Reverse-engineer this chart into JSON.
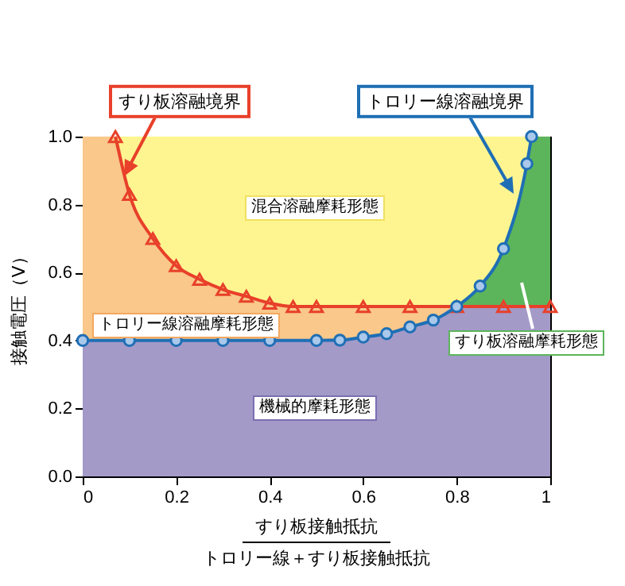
{
  "chart_data": {
    "type": "line",
    "xlabel": "すり板接触抵抗",
    "ylabel": "接触電圧（V）",
    "xlim": [
      0,
      1
    ],
    "xticks": [
      0,
      0.2,
      0.4,
      0.6,
      0.8,
      1
    ],
    "ylim": [
      0,
      1
    ],
    "yticks": [
      {
        "value": 0,
        "label": "0.0"
      },
      {
        "value": 0.2,
        "label": "0.2"
      },
      {
        "value": 0.4,
        "label": "0.4"
      },
      {
        "value": 0.6,
        "label": "0.6"
      },
      {
        "value": 0.8,
        "label": "0.8"
      },
      {
        "value": 1,
        "label": "1.0"
      }
    ],
    "grid": false,
    "series": [
      {
        "type": "area",
        "color": "#fef590",
        "x": [
          0,
          1
        ],
        "values": [
          1,
          1
        ]
      },
      {
        "type": "area",
        "color": "#5cb55a",
        "x": [
          0.8,
          0.85,
          0.9,
          0.95,
          0.96,
          1
        ],
        "values": [
          0.5,
          0.56,
          0.67,
          0.92,
          1.0,
          1.0
        ]
      },
      {
        "type": "area",
        "color": "#f9c88a",
        "x": [
          0,
          0.07,
          0.1,
          0.15,
          0.2,
          0.25,
          0.3,
          0.35,
          0.4,
          0.45,
          0.5,
          0.6,
          0.7,
          0.8
        ],
        "values": [
          1.0,
          1.0,
          0.83,
          0.7,
          0.62,
          0.58,
          0.55,
          0.53,
          0.51,
          0.5,
          0.5,
          0.5,
          0.5,
          0.5
        ]
      },
      {
        "type": "area",
        "color": "#a39ac8",
        "x": [
          0,
          0.1,
          0.2,
          0.3,
          0.4,
          0.5,
          0.55,
          0.6,
          0.65,
          0.7,
          0.75,
          0.8,
          1
        ],
        "values": [
          0.4,
          0.4,
          0.4,
          0.4,
          0.4,
          0.4,
          0.401,
          0.41,
          0.42,
          0.44,
          0.46,
          0.5,
          0.5
        ]
      },
      {
        "color": "#e8402a",
        "marker": "triangle",
        "x": [
          0.07,
          0.1,
          0.15,
          0.2,
          0.25,
          0.3,
          0.35,
          0.4,
          0.45,
          0.5,
          0.6,
          0.7,
          0.8,
          0.9,
          1.0
        ],
        "values": [
          1.0,
          0.83,
          0.7,
          0.62,
          0.58,
          0.55,
          0.53,
          0.51,
          0.5,
          0.5,
          0.5,
          0.5,
          0.5,
          0.5,
          0.5
        ]
      },
      {
        "color": "#1f6fb5",
        "marker": "circle",
        "x": [
          0,
          0.1,
          0.2,
          0.3,
          0.4,
          0.5,
          0.55,
          0.6,
          0.65,
          0.7,
          0.75,
          0.8,
          0.85,
          0.9,
          0.95,
          0.96
        ],
        "values": [
          0.4,
          0.4,
          0.4,
          0.4,
          0.4,
          0.4,
          0.401,
          0.41,
          0.42,
          0.44,
          0.46,
          0.5,
          0.56,
          0.67,
          0.92,
          1.0
        ]
      }
    ],
    "annotations": [
      "すり板溶融境界",
      "トロリー線溶融境界",
      "混合溶融摩耗形態",
      "トロリー線溶融摩耗形態",
      "すり板溶融摩耗形態",
      "機械的摩耗形態",
      "トロリー線＋すり板接触抵抗"
    ]
  }
}
